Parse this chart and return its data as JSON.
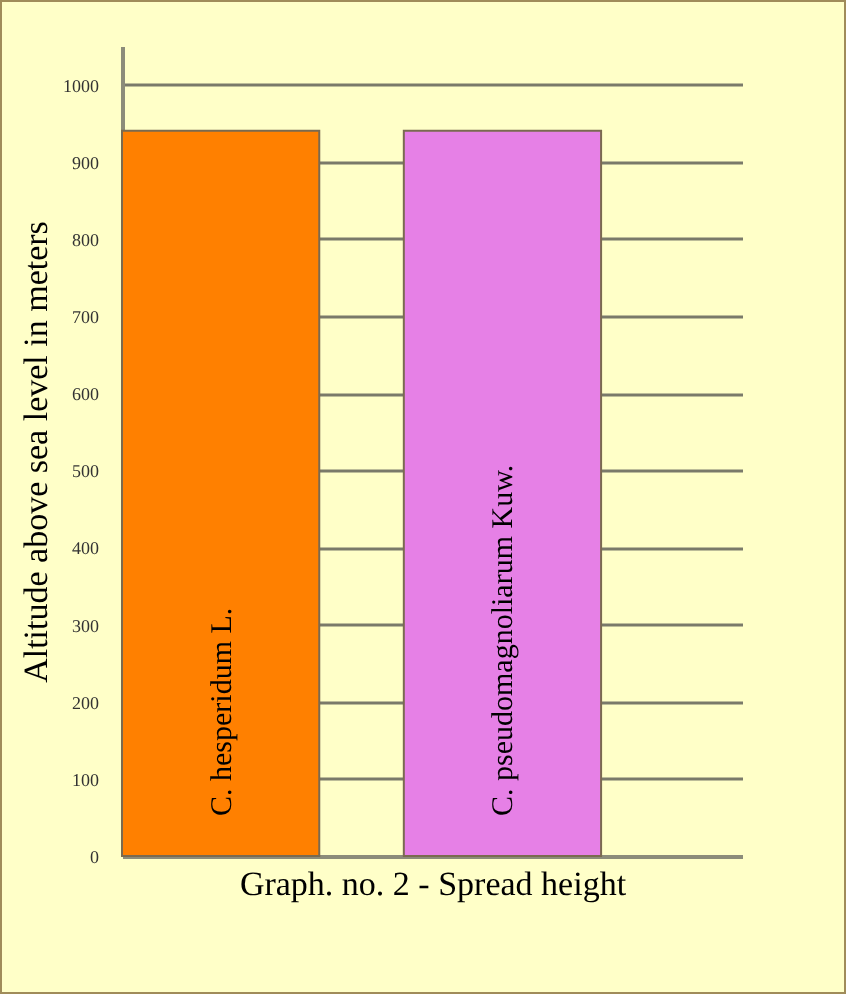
{
  "chart_data": {
    "type": "bar",
    "xlabel": "Graph. no. 2 - Spread height",
    "ylabel": "Altitude above sea level in meters",
    "categories": [
      "C. hesperidum L.",
      "C. pseudomagnoliarum Kuw."
    ],
    "values": [
      940,
      940
    ],
    "colors": [
      "#ff8000",
      "#e680e6"
    ],
    "ylim": [
      0,
      1050
    ],
    "yticks": [
      0,
      100,
      200,
      300,
      400,
      500,
      600,
      700,
      800,
      900,
      1000
    ],
    "grid": "y",
    "tick_labels": "y"
  }
}
